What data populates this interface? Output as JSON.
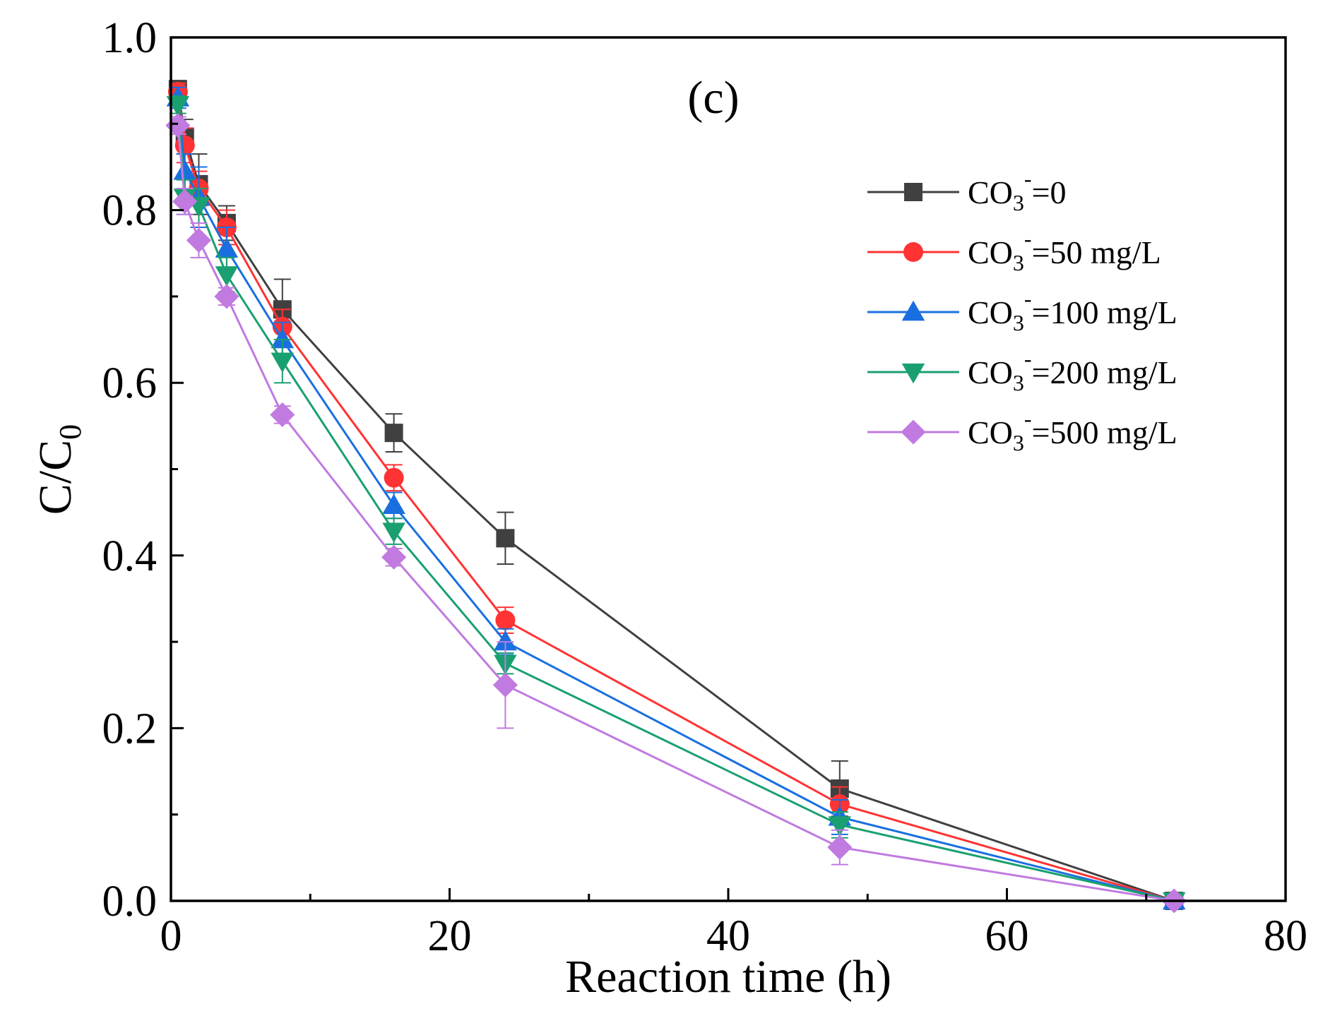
{
  "chart_data": {
    "type": "line",
    "panel_label": "(c)",
    "xlabel": "Reaction time (h)",
    "ylabel": {
      "main": "C/C",
      "sub": "0"
    },
    "xlim": [
      0,
      80
    ],
    "ylim": [
      0.0,
      1.0
    ],
    "x_ticks": [
      0,
      20,
      40,
      60,
      80
    ],
    "x_tick_labels": [
      "0",
      "20",
      "40",
      "60",
      "80"
    ],
    "y_ticks": [
      0.0,
      0.2,
      0.4,
      0.6,
      0.8,
      1.0
    ],
    "y_tick_labels": [
      "0.0",
      "0.2",
      "0.4",
      "0.6",
      "0.8",
      "1.0"
    ],
    "legend_position": "top-right",
    "grid": false,
    "x": [
      0.5,
      1,
      2,
      4,
      8,
      16,
      24,
      48,
      72
    ],
    "series": [
      {
        "name": "CO3-=0",
        "legend": {
          "prefix": "CO",
          "sub": "3",
          "sup": "-",
          "suffix": "=0"
        },
        "color": "#404040",
        "marker": "square",
        "values": [
          0.94,
          0.885,
          0.83,
          0.785,
          0.685,
          0.542,
          0.42,
          0.13,
          0.0
        ],
        "errors": [
          0.01,
          0.02,
          0.035,
          0.02,
          0.035,
          0.022,
          0.03,
          0.032,
          0.003
        ]
      },
      {
        "name": "CO3-=50 mg/L",
        "legend": {
          "prefix": "CO",
          "sub": "3",
          "sup": "-",
          "suffix": "=50 mg/L"
        },
        "color": "#ff3333",
        "marker": "circle",
        "values": [
          0.937,
          0.875,
          0.825,
          0.78,
          0.665,
          0.49,
          0.325,
          0.112,
          0.0
        ],
        "errors": [
          0.01,
          0.02,
          0.02,
          0.02,
          0.02,
          0.015,
          0.015,
          0.02,
          0.003
        ]
      },
      {
        "name": "CO3-=100 mg/L",
        "legend": {
          "prefix": "CO",
          "sub": "3",
          "sup": "-",
          "suffix": "=100 mg/L"
        },
        "color": "#1a6fe0",
        "marker": "triangle-up",
        "values": [
          0.93,
          0.845,
          0.815,
          0.755,
          0.65,
          0.458,
          0.3,
          0.097,
          0.0
        ],
        "errors": [
          0.012,
          0.02,
          0.035,
          0.025,
          0.02,
          0.015,
          0.015,
          0.02,
          0.003
        ]
      },
      {
        "name": "CO3-=200 mg/L",
        "legend": {
          "prefix": "CO",
          "sub": "3",
          "sup": "-",
          "suffix": "=200 mg/L"
        },
        "color": "#1aa070",
        "marker": "triangle-down",
        "values": [
          0.922,
          0.815,
          0.805,
          0.725,
          0.625,
          0.428,
          0.275,
          0.088,
          0.0
        ],
        "errors": [
          0.01,
          0.02,
          0.02,
          0.02,
          0.025,
          0.015,
          0.012,
          0.015,
          0.003
        ]
      },
      {
        "name": "CO3-=500 mg/L",
        "legend": {
          "prefix": "CO",
          "sub": "3",
          "sup": "-",
          "suffix": "=500 mg/L"
        },
        "color": "#c07ae0",
        "marker": "diamond",
        "values": [
          0.898,
          0.81,
          0.765,
          0.7,
          0.563,
          0.398,
          0.25,
          0.062,
          0.0
        ],
        "errors": [
          0.01,
          0.015,
          0.02,
          0.01,
          0.01,
          0.01,
          0.05,
          0.02,
          0.003
        ]
      }
    ]
  }
}
